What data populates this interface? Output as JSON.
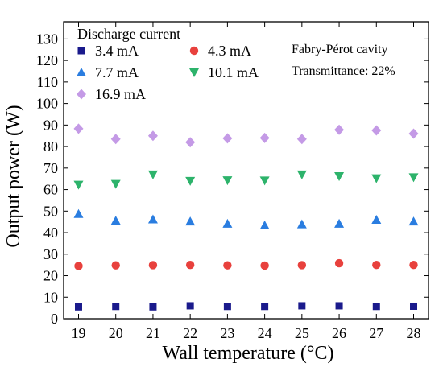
{
  "chart_data": {
    "type": "scatter",
    "xlabel": "Wall temperature (°C)",
    "ylabel": "Output power (W)",
    "xlim": [
      18.6,
      28.4
    ],
    "ylim": [
      0,
      138
    ],
    "x_ticks": [
      19,
      20,
      21,
      22,
      23,
      24,
      25,
      26,
      27,
      28
    ],
    "y_ticks": [
      0,
      10,
      20,
      30,
      40,
      50,
      60,
      70,
      80,
      90,
      100,
      110,
      120,
      130
    ],
    "legend_title": "Discharge current",
    "legend_position": "top-left",
    "annotation": [
      "Fabry-Pérot  cavity",
      "Transmittance: 22%"
    ],
    "x": [
      19,
      20,
      21,
      22,
      23,
      24,
      25,
      26,
      27,
      28
    ],
    "series": [
      {
        "name": "3.4 mA",
        "marker": "square",
        "color": "#1a1a8c",
        "values": [
          5.5,
          5.7,
          5.5,
          6.0,
          5.7,
          5.7,
          6.0,
          6.0,
          5.7,
          5.8
        ]
      },
      {
        "name": "4.3 mA",
        "marker": "circle",
        "color": "#e8413d",
        "values": [
          24.5,
          24.8,
          24.9,
          25.0,
          24.8,
          24.7,
          24.9,
          25.8,
          25.0,
          25.0
        ]
      },
      {
        "name": "7.7 mA",
        "marker": "triangle-up",
        "color": "#2a7de0",
        "values": [
          48.7,
          45.6,
          46.2,
          45.2,
          44.2,
          43.4,
          43.9,
          44.2,
          46.0,
          45.2
        ]
      },
      {
        "name": "10.1 mA",
        "marker": "triangle-down",
        "color": "#2db36b",
        "values": [
          62.2,
          62.6,
          67.0,
          64.0,
          64.3,
          64.2,
          67.0,
          66.2,
          65.2,
          65.7
        ]
      },
      {
        "name": "16.9 mA",
        "marker": "diamond",
        "color": "#c49ae6",
        "values": [
          88.3,
          83.5,
          85.0,
          82.0,
          83.8,
          84.0,
          83.5,
          87.8,
          87.5,
          86.0
        ]
      }
    ]
  }
}
